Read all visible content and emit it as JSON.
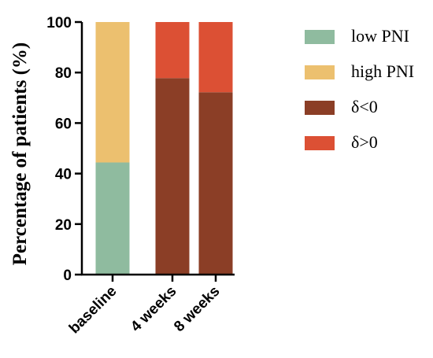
{
  "chart_data": {
    "type": "bar",
    "stacked": true,
    "categories": [
      "baseline",
      "4 weeks",
      "8 weeks"
    ],
    "series": [
      {
        "name": "low PNI",
        "color": "#8fbb9f",
        "values": [
          44.4,
          0,
          0
        ]
      },
      {
        "name": "high PNI",
        "color": "#ecc06f",
        "values": [
          55.6,
          0,
          0
        ]
      },
      {
        "name": "δ<0",
        "color": "#8b3e26",
        "values": [
          0,
          77.8,
          72.2
        ]
      },
      {
        "name": "δ>0",
        "color": "#dc5034",
        "values": [
          0,
          22.2,
          27.8
        ]
      }
    ],
    "title": "",
    "xlabel": "",
    "ylabel": "Percentage of patients (%)",
    "ylim": [
      0,
      100
    ],
    "yticks": [
      "0",
      "20",
      "40",
      "60",
      "80",
      "100"
    ],
    "grid": false,
    "legend_position": "right"
  }
}
